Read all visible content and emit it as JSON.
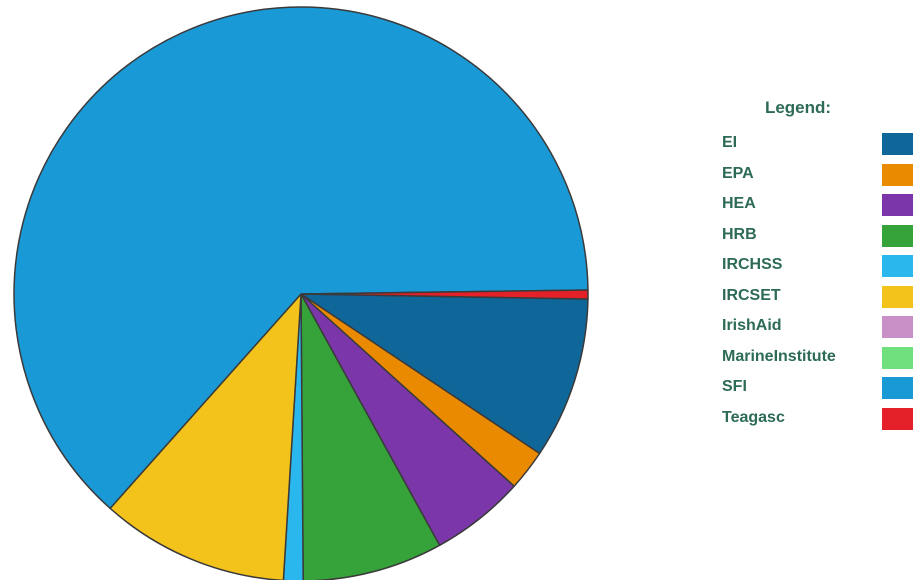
{
  "chart_data": {
    "type": "pie",
    "legend_title": "Legend:",
    "legend_position": "right",
    "slices": [
      {
        "label": "EI",
        "value": 9.1,
        "color": "#0f6699"
      },
      {
        "label": "EPA",
        "value": 2.3,
        "color": "#ea8a00"
      },
      {
        "label": "HEA",
        "value": 5.3,
        "color": "#7b37a9"
      },
      {
        "label": "HRB",
        "value": 7.9,
        "color": "#36a33a"
      },
      {
        "label": "IRCHSS",
        "value": 1.1,
        "color": "#2ab7ee"
      },
      {
        "label": "IRCSET",
        "value": 10.6,
        "color": "#f3c31b"
      },
      {
        "label": "IrishAid",
        "value": 0,
        "color": "#c990c8"
      },
      {
        "label": "MarineInstitute",
        "value": 0,
        "color": "#6fe07d"
      },
      {
        "label": "SFI",
        "value": 63.2,
        "color": "#1999d6"
      },
      {
        "label": "Teagasc",
        "value": 0.5,
        "color": "#e42028"
      }
    ]
  }
}
